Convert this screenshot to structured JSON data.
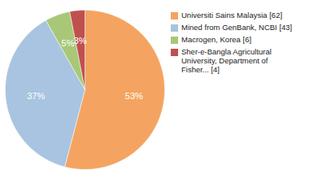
{
  "chart_data": {
    "type": "pie",
    "categories": [
      "Universiti Sains Malaysia [62]",
      "Mined from GenBank, NCBI [43]",
      "Macrogen, Korea [6]",
      "Sher-e-Bangla Agricultural\nUniversity, Department of\nFisher... [4]"
    ],
    "values": [
      53,
      37,
      5,
      3
    ],
    "value_labels": [
      "53%",
      "37%",
      "5%",
      "3%"
    ],
    "data_labels": true,
    "colors": [
      "#f4a460",
      "#a8c4e0",
      "#a8c878",
      "#c0504d"
    ],
    "legend": "right"
  }
}
